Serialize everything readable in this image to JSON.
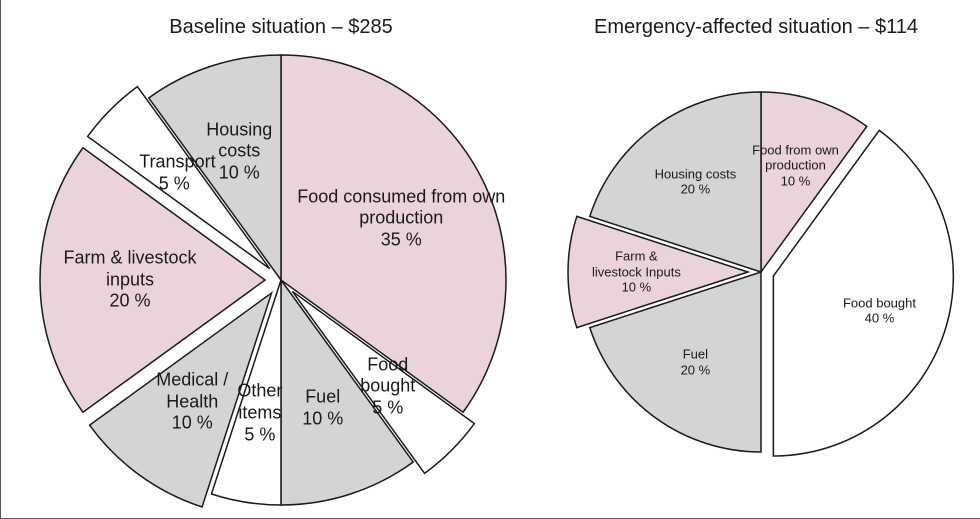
{
  "chart_data": [
    {
      "type": "pie",
      "title": "Baseline situation – $285",
      "categories": [
        "Food consumed from own production",
        "Food bought",
        "Fuel",
        "Other items",
        "Medical / Health",
        "Farm & livestock inputs",
        "Transport",
        "Housing costs"
      ],
      "values": [
        35,
        5,
        10,
        5,
        10,
        20,
        5,
        10
      ],
      "value_labels": [
        "35 %",
        "5 %",
        "10 %",
        "5 %",
        "10 %",
        "20 %",
        "5 %",
        "10 %"
      ],
      "colors": [
        "#ebd3dc",
        "#ffffff",
        "#d4d4d6",
        "#ffffff",
        "#d4d4d6",
        "#ebd3dc",
        "#ffffff",
        "#d4d4d6"
      ],
      "exploded": [
        false,
        true,
        false,
        false,
        true,
        true,
        true,
        false
      ]
    },
    {
      "type": "pie",
      "title": "Emergency-affected situation – $114",
      "categories": [
        "Food from own production",
        "Food bought",
        "Fuel",
        "Farm & livestock Inputs",
        "Housing costs"
      ],
      "values": [
        10,
        40,
        20,
        10,
        20
      ],
      "value_labels": [
        "10 %",
        "40 %",
        "20 %",
        "10 %",
        "20 %"
      ],
      "colors": [
        "#ebd3dc",
        "#ffffff",
        "#d4d4d6",
        "#ebd3dc",
        "#d4d4d6"
      ],
      "exploded": [
        false,
        true,
        false,
        true,
        false
      ]
    }
  ]
}
